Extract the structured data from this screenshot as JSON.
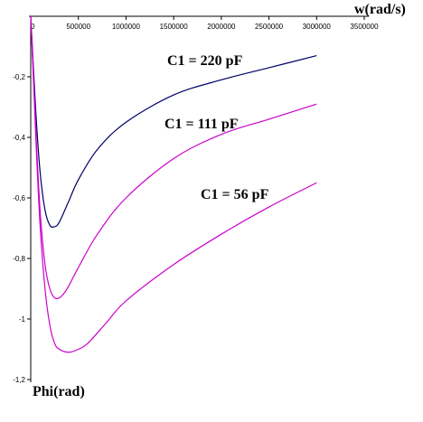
{
  "chart_data": {
    "type": "line",
    "title": "",
    "xlabel": "w(rad/s)",
    "ylabel": "Phi(rad)",
    "xlim": [
      0,
      3500000
    ],
    "ylim": [
      -1.2,
      0
    ],
    "x_ticks": [
      0,
      500000,
      1000000,
      1500000,
      2000000,
      2500000,
      3000000,
      3500000
    ],
    "x_tick_labels": [
      "0",
      "500000",
      "1000000",
      "1500000",
      "2000000",
      "2500000",
      "3000000",
      "3500000"
    ],
    "y_ticks": [
      -0.2,
      -0.4,
      -0.6,
      -0.8,
      -1,
      -1.2
    ],
    "y_tick_labels": [
      "-0,2",
      "-0,4",
      "-0,6",
      "-0,8",
      "-1",
      "-1,2"
    ],
    "grid": false,
    "series": [
      {
        "name": "C1 = 220 pF",
        "color": "#000066",
        "x": [
          0,
          30000,
          60000,
          100000,
          150000,
          200000,
          250000,
          300000,
          400000,
          500000,
          700000,
          1000000,
          1500000,
          2000000,
          2500000,
          3000000
        ],
        "y": [
          0,
          -0.18,
          -0.35,
          -0.52,
          -0.64,
          -0.69,
          -0.695,
          -0.68,
          -0.61,
          -0.54,
          -0.44,
          -0.35,
          -0.26,
          -0.21,
          -0.17,
          -0.13
        ]
      },
      {
        "name": "C1 = 111 pF",
        "color": "#cc00cc",
        "x": [
          0,
          30000,
          60000,
          100000,
          150000,
          200000,
          250000,
          300000,
          350000,
          400000,
          500000,
          700000,
          1000000,
          1500000,
          2000000,
          2500000,
          3000000
        ],
        "y": [
          0,
          -0.2,
          -0.42,
          -0.65,
          -0.82,
          -0.9,
          -0.93,
          -0.93,
          -0.915,
          -0.89,
          -0.83,
          -0.72,
          -0.6,
          -0.47,
          -0.39,
          -0.34,
          -0.29
        ]
      },
      {
        "name": "C1 = 56 pF",
        "color": "#cc00cc",
        "x": [
          0,
          30000,
          60000,
          100000,
          150000,
          200000,
          250000,
          300000,
          400000,
          500000,
          600000,
          800000,
          1000000,
          1500000,
          2000000,
          2500000,
          3000000
        ],
        "y": [
          0,
          -0.22,
          -0.45,
          -0.7,
          -0.9,
          -1.02,
          -1.08,
          -1.1,
          -1.11,
          -1.1,
          -1.08,
          -1.01,
          -0.94,
          -0.82,
          -0.72,
          -0.63,
          -0.55
        ]
      }
    ]
  }
}
